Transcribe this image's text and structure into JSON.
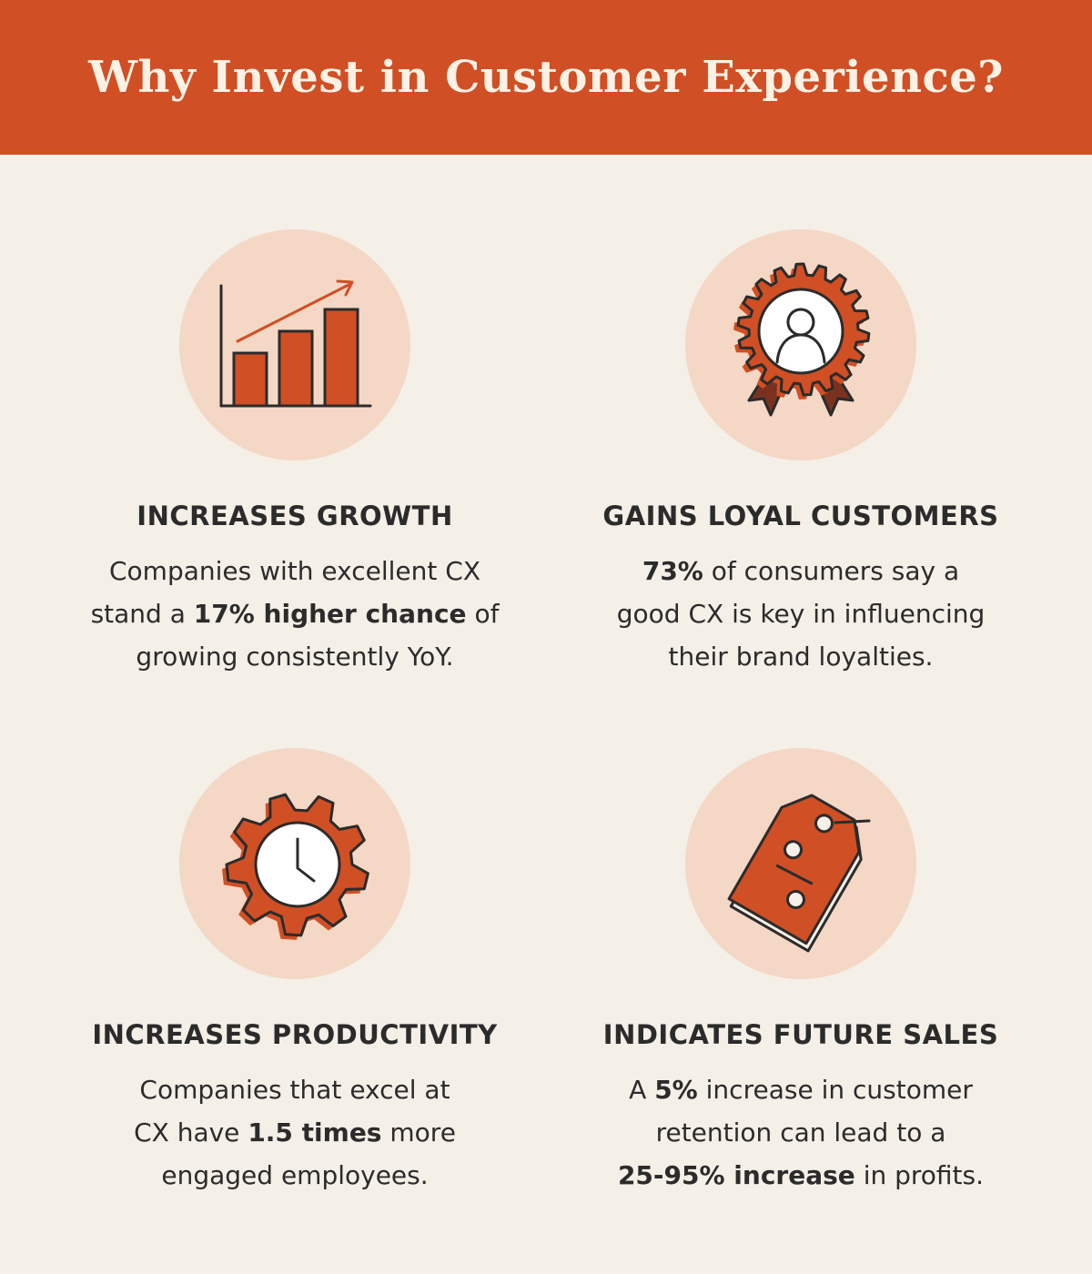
{
  "header": {
    "title": "Why Invest in Customer Experience?"
  },
  "cards": [
    {
      "icon": "bar-chart-growth-icon",
      "title": "INCREASES GROWTH",
      "lines": [
        [
          "Companies with excellent CX"
        ],
        [
          "stand a ",
          {
            "b": "17% higher chance"
          },
          " of"
        ],
        [
          "growing consistently YoY."
        ]
      ]
    },
    {
      "icon": "award-badge-icon",
      "title": "GAINS LOYAL CUSTOMERS",
      "lines": [
        [
          {
            "b": "73%"
          },
          " of consumers say a"
        ],
        [
          "good CX is key in influencing"
        ],
        [
          "their brand loyalties."
        ]
      ]
    },
    {
      "icon": "gear-clock-icon",
      "title": "INCREASES PRODUCTIVITY",
      "lines": [
        [
          "Companies that excel at"
        ],
        [
          "CX have ",
          {
            "b": "1.5 times"
          },
          " more"
        ],
        [
          "engaged employees."
        ]
      ]
    },
    {
      "icon": "price-tag-icon",
      "title": "INDICATES FUTURE SALES",
      "lines": [
        [
          "A ",
          {
            "b": "5%"
          },
          " increase in customer"
        ],
        [
          "retention can lead to a"
        ],
        [
          {
            "b": "25-95% increase"
          },
          " in profits."
        ]
      ]
    }
  ],
  "colors": {
    "accent": "#d04f25",
    "background": "#f4efe7",
    "circle": "#f4d7c5",
    "text": "#2b2b2b",
    "header_text": "#fbf1e4"
  }
}
